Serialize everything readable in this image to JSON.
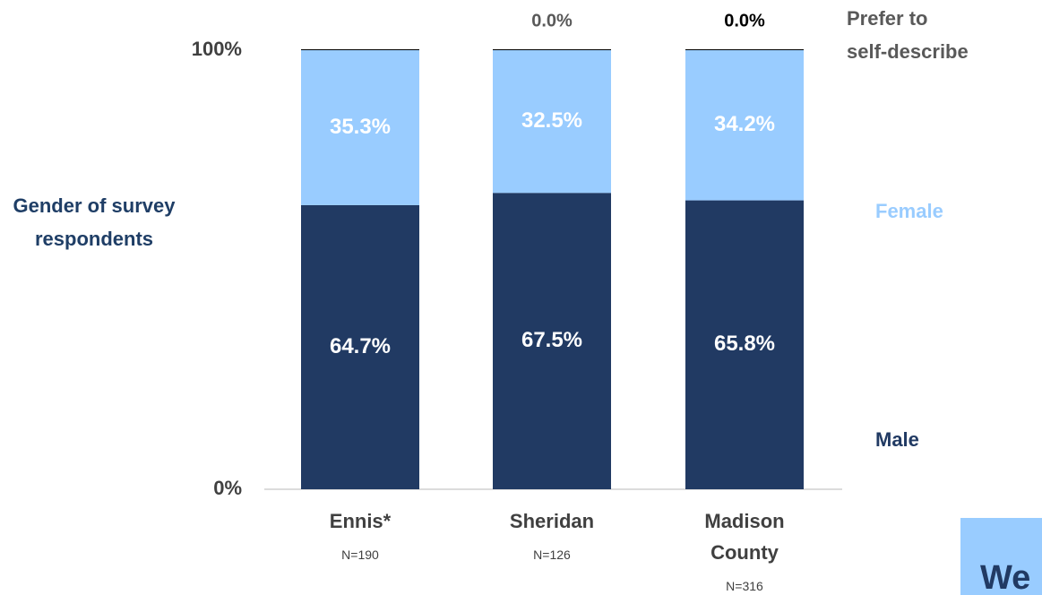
{
  "chart_data": {
    "type": "stacked_bar",
    "y_axis_label": "Gender of survey respondents",
    "categories": [
      "Ennis*",
      "Sheridan",
      "Madison County"
    ],
    "sample_sizes": [
      "N=190",
      "N=126",
      "N=316"
    ],
    "ylim": [
      0,
      100
    ],
    "yticks": [
      {
        "value": 0,
        "label": "0%"
      },
      {
        "value": 100,
        "label": "100%"
      }
    ],
    "series": [
      {
        "name": "Male",
        "color": "#213a63",
        "values": [
          64.7,
          67.5,
          65.8
        ],
        "value_labels": [
          "64.7%",
          "67.5%",
          "65.8%"
        ]
      },
      {
        "name": "Female",
        "color": "#99ccff",
        "values": [
          35.3,
          32.5,
          34.2
        ],
        "value_labels": [
          "35.3%",
          "32.5%",
          "34.2%"
        ]
      },
      {
        "name": "Prefer to self-describe",
        "color": "#000000",
        "values": [
          0.0,
          0.0,
          0.0
        ],
        "value_labels": [
          null,
          "0.0%",
          "0.0%"
        ]
      }
    ],
    "corner_text": "We"
  }
}
